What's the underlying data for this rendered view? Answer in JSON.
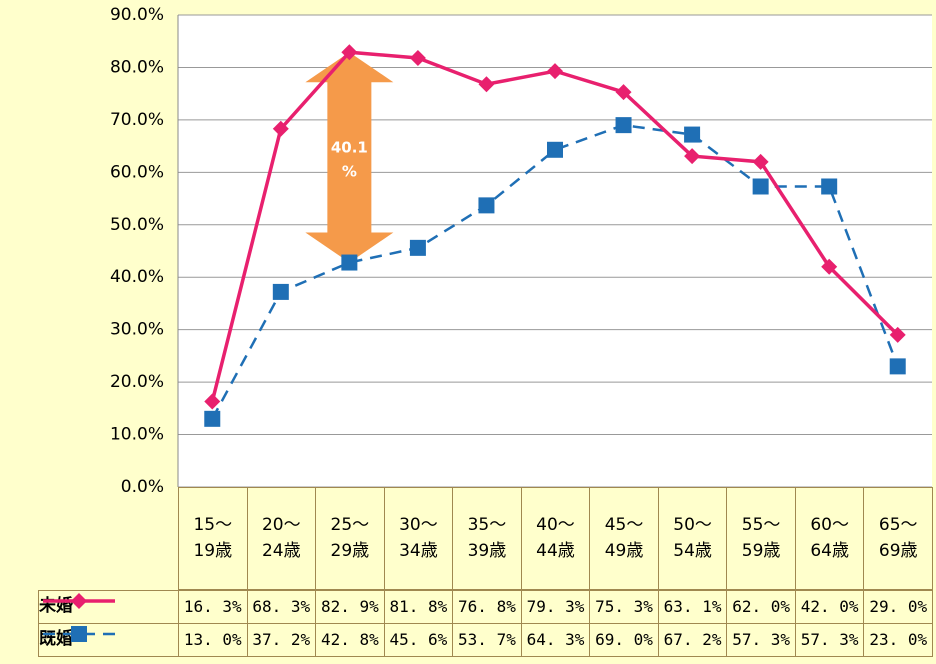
{
  "chart_data": {
    "type": "line",
    "categories": [
      "15～\n19歳",
      "20～\n24歳",
      "25～\n29歳",
      "30～\n34歳",
      "35～\n39歳",
      "40～\n44歳",
      "45～\n49歳",
      "50～\n54歳",
      "55～\n59歳",
      "60～\n64歳",
      "65～\n69歳"
    ],
    "series": [
      {
        "name": "未婚",
        "color": "#e8206e",
        "marker": "diamond",
        "dash": false,
        "values": [
          16.3,
          68.3,
          82.9,
          81.8,
          76.8,
          79.3,
          75.3,
          63.1,
          62.0,
          42.0,
          29.0
        ],
        "value_labels": [
          "16. 3%",
          "68. 3%",
          "82. 9%",
          "81. 8%",
          "76. 8%",
          "79. 3%",
          "75. 3%",
          "63. 1%",
          "62. 0%",
          "42. 0%",
          "29. 0%"
        ]
      },
      {
        "name": "既婚",
        "color": "#1f6fb5",
        "marker": "square",
        "dash": true,
        "values": [
          13.0,
          37.2,
          42.8,
          45.6,
          53.7,
          64.3,
          69.0,
          67.2,
          57.3,
          57.3,
          23.0
        ],
        "value_labels": [
          "13. 0%",
          "37. 2%",
          "42. 8%",
          "45. 6%",
          "53. 7%",
          "64. 3%",
          "69. 0%",
          "67. 2%",
          "57. 3%",
          "57. 3%",
          "23. 0%"
        ]
      }
    ],
    "ylim": [
      0,
      90
    ],
    "yticks": [
      {
        "value": 0,
        "label": "0.0%"
      },
      {
        "value": 10,
        "label": "10.0%"
      },
      {
        "value": 20,
        "label": "20.0%"
      },
      {
        "value": 30,
        "label": "30.0%"
      },
      {
        "value": 40,
        "label": "40.0%"
      },
      {
        "value": 50,
        "label": "50.0%"
      },
      {
        "value": 60,
        "label": "60.0%"
      },
      {
        "value": 70,
        "label": "70.0%"
      },
      {
        "value": 80,
        "label": "80.0%"
      },
      {
        "value": 90,
        "label": "90.0%"
      }
    ],
    "grid": true,
    "annotation": "40.1\n%"
  }
}
